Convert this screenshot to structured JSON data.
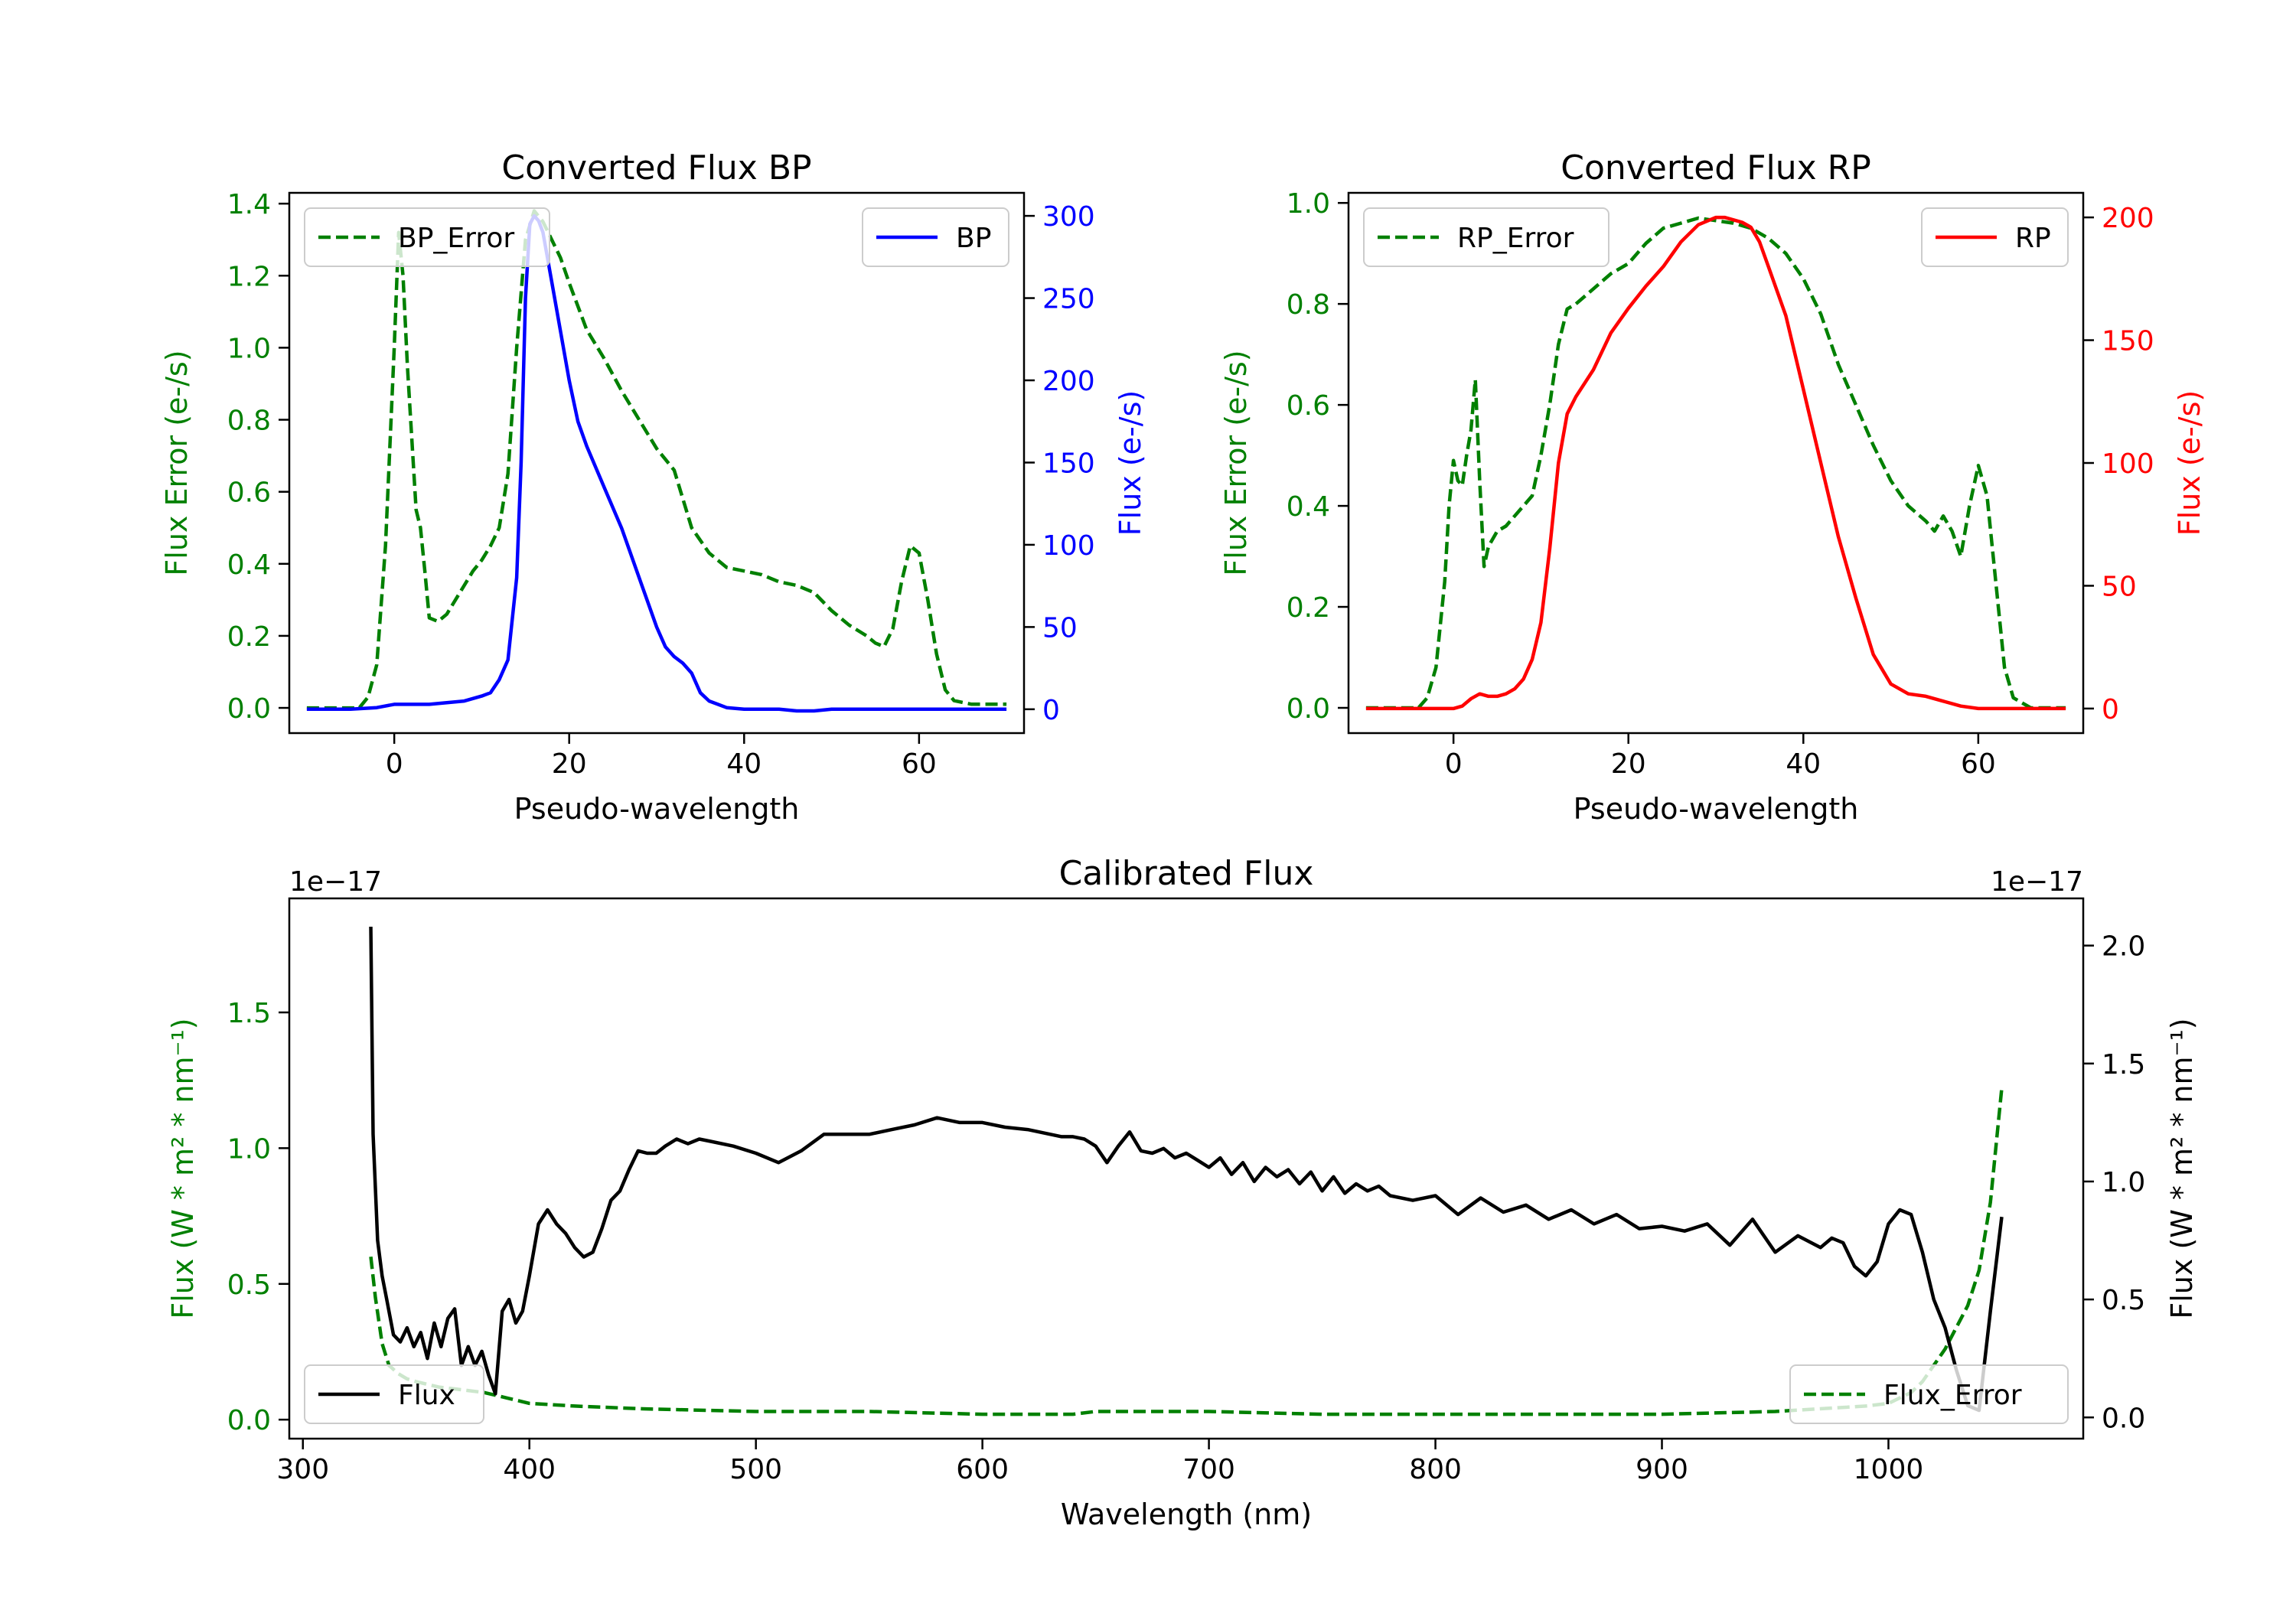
{
  "chart_data": [
    {
      "id": "bp",
      "type": "line",
      "title": "Converted Flux BP",
      "xlabel": "Pseudo-wavelength",
      "ylabel_left": "Flux Error (e-/s)",
      "ylabel_right": "Flux (e-/s)",
      "xlim": [
        -12,
        72
      ],
      "ylim_left": [
        -0.07,
        1.43
      ],
      "ylim_right": [
        -14.5,
        314
      ],
      "xticks": [
        0,
        20,
        40,
        60
      ],
      "yticks_left": [
        "0.0",
        "0.2",
        "0.4",
        "0.6",
        "0.8",
        "1.0",
        "1.2",
        "1.4"
      ],
      "yticks_right": [
        "0",
        "50",
        "100",
        "150",
        "200",
        "250",
        "300"
      ],
      "left_color": "#008000",
      "right_color": "#0000ff",
      "series": [
        {
          "name": "BP_Error",
          "axis": "left",
          "style": "dashed",
          "color": "#008000",
          "x": [
            -10,
            -4,
            -3,
            -2,
            -1,
            0,
            0.5,
            1,
            1.5,
            2,
            2.5,
            3,
            3.5,
            4,
            5,
            6,
            7,
            8,
            9,
            10,
            11,
            12,
            13,
            14,
            15,
            16,
            17,
            18,
            19,
            20,
            22,
            24,
            26,
            28,
            30,
            32,
            34,
            36,
            38,
            40,
            42,
            44,
            46,
            48,
            50,
            52,
            54,
            55,
            56,
            57,
            58,
            59,
            60,
            61,
            62,
            63,
            64,
            66,
            70
          ],
          "y": [
            0.0,
            0.0,
            0.03,
            0.12,
            0.45,
            1.0,
            1.32,
            1.2,
            0.95,
            0.75,
            0.55,
            0.5,
            0.38,
            0.25,
            0.24,
            0.26,
            0.3,
            0.34,
            0.38,
            0.41,
            0.45,
            0.5,
            0.65,
            1.0,
            1.3,
            1.38,
            1.35,
            1.3,
            1.25,
            1.18,
            1.05,
            0.97,
            0.88,
            0.8,
            0.72,
            0.66,
            0.5,
            0.43,
            0.39,
            0.38,
            0.37,
            0.35,
            0.34,
            0.32,
            0.27,
            0.23,
            0.2,
            0.18,
            0.17,
            0.22,
            0.35,
            0.45,
            0.43,
            0.3,
            0.15,
            0.05,
            0.02,
            0.01,
            0.01
          ]
        },
        {
          "name": "BP",
          "axis": "right",
          "style": "solid",
          "color": "#0000ff",
          "x": [
            -10,
            -5,
            -2,
            0,
            2,
            4,
            6,
            8,
            10,
            11,
            12,
            13,
            14,
            14.5,
            15,
            15.5,
            16,
            16.5,
            17,
            18,
            19,
            20,
            21,
            22,
            24,
            26,
            28,
            30,
            31,
            32,
            33,
            34,
            35,
            36,
            37,
            38,
            40,
            42,
            44,
            46,
            48,
            50,
            55,
            60,
            65,
            70
          ],
          "y": [
            0,
            0,
            1,
            3,
            3,
            3,
            4,
            5,
            8,
            10,
            18,
            30,
            80,
            150,
            250,
            295,
            300,
            297,
            290,
            260,
            230,
            200,
            175,
            160,
            135,
            110,
            80,
            50,
            38,
            32,
            28,
            22,
            10,
            5,
            3,
            1,
            0,
            0,
            0,
            -1,
            -1,
            0,
            0,
            0,
            0,
            0
          ]
        }
      ],
      "legend": [
        {
          "label": "BP_Error",
          "position": "upper-left"
        },
        {
          "label": "BP",
          "position": "upper-right"
        }
      ]
    },
    {
      "id": "rp",
      "type": "line",
      "title": "Converted Flux RP",
      "xlabel": "Pseudo-wavelength",
      "ylabel_left": "Flux Error (e-/s)",
      "ylabel_right": "Flux (e-/s)",
      "xlim": [
        -12,
        72
      ],
      "ylim_left": [
        -0.05,
        1.02
      ],
      "ylim_right": [
        -10,
        210
      ],
      "xticks": [
        0,
        20,
        40,
        60
      ],
      "yticks_left": [
        "0.0",
        "0.2",
        "0.4",
        "0.6",
        "0.8",
        "1.0"
      ],
      "yticks_right": [
        "0",
        "50",
        "100",
        "150",
        "200"
      ],
      "left_color": "#008000",
      "right_color": "#ff0000",
      "series": [
        {
          "name": "RP_Error",
          "axis": "left",
          "style": "dashed",
          "color": "#008000",
          "x": [
            -10,
            -4,
            -3,
            -2,
            -1,
            -0.5,
            0,
            0.5,
            1,
            1.5,
            2,
            2.5,
            3,
            3.5,
            4,
            5,
            6,
            7,
            8,
            9,
            10,
            11,
            12,
            13,
            14,
            16,
            18,
            20,
            22,
            24,
            26,
            28,
            30,
            32,
            34,
            36,
            38,
            40,
            42,
            44,
            46,
            48,
            50,
            52,
            54,
            55,
            56,
            57,
            58,
            59,
            60,
            61,
            62,
            63,
            64,
            66,
            70
          ],
          "y": [
            0.0,
            0.0,
            0.02,
            0.08,
            0.25,
            0.4,
            0.49,
            0.45,
            0.44,
            0.5,
            0.55,
            0.65,
            0.45,
            0.28,
            0.32,
            0.35,
            0.36,
            0.38,
            0.4,
            0.42,
            0.5,
            0.6,
            0.72,
            0.79,
            0.8,
            0.83,
            0.86,
            0.88,
            0.92,
            0.95,
            0.96,
            0.97,
            0.965,
            0.96,
            0.95,
            0.93,
            0.9,
            0.85,
            0.78,
            0.68,
            0.6,
            0.52,
            0.45,
            0.4,
            0.37,
            0.35,
            0.38,
            0.35,
            0.3,
            0.4,
            0.48,
            0.42,
            0.25,
            0.08,
            0.02,
            0.0,
            0.0
          ]
        },
        {
          "name": "RP",
          "axis": "right",
          "style": "solid",
          "color": "#ff0000",
          "x": [
            -10,
            -5,
            0,
            1,
            2,
            3,
            4,
            5,
            6,
            7,
            8,
            9,
            10,
            11,
            12,
            13,
            14,
            16,
            18,
            20,
            22,
            24,
            26,
            28,
            30,
            31,
            32,
            33,
            34,
            35,
            36,
            38,
            40,
            42,
            44,
            46,
            48,
            50,
            52,
            54,
            56,
            58,
            60,
            65,
            70
          ],
          "y": [
            0,
            0,
            0,
            1,
            4,
            6,
            5,
            5,
            6,
            8,
            12,
            20,
            35,
            65,
            100,
            120,
            127,
            138,
            153,
            163,
            172,
            180,
            190,
            197,
            200,
            200,
            199,
            198,
            196,
            190,
            180,
            160,
            130,
            100,
            70,
            45,
            22,
            10,
            6,
            5,
            3,
            1,
            0,
            0,
            0
          ]
        }
      ],
      "legend": [
        {
          "label": "RP_Error",
          "position": "upper-left"
        },
        {
          "label": "RP",
          "position": "upper-right"
        }
      ]
    },
    {
      "id": "cal",
      "type": "line",
      "title": "Calibrated Flux",
      "xlabel": "Wavelength (nm)",
      "ylabel_left": "Flux (W * m² * nm⁻¹)",
      "ylabel_right": "Flux (W * m² * nm⁻¹)",
      "offset_left": "1e−17",
      "offset_right": "1e−17",
      "xlim": [
        294,
        1086
      ],
      "ylim_left": [
        -0.07,
        1.92
      ],
      "ylim_right": [
        -0.09,
        2.2
      ],
      "xticks": [
        300,
        400,
        500,
        600,
        700,
        800,
        900,
        1000
      ],
      "yticks_left": [
        "0.0",
        "0.5",
        "1.0",
        "1.5"
      ],
      "yticks_right": [
        "0.0",
        "0.5",
        "1.0",
        "1.5",
        "2.0"
      ],
      "left_color": "#008000",
      "right_color": "#000000",
      "series": [
        {
          "name": "Flux_Error",
          "axis": "left",
          "style": "dashed",
          "color": "#008000",
          "x": [
            330,
            332,
            335,
            338,
            342,
            346,
            350,
            360,
            370,
            380,
            390,
            400,
            420,
            450,
            500,
            550,
            600,
            630,
            640,
            650,
            700,
            750,
            800,
            850,
            900,
            950,
            990,
            1000,
            1010,
            1015,
            1020,
            1025,
            1030,
            1035,
            1040,
            1045,
            1050
          ],
          "y": [
            0.6,
            0.45,
            0.28,
            0.2,
            0.17,
            0.15,
            0.14,
            0.12,
            0.11,
            0.1,
            0.08,
            0.06,
            0.05,
            0.04,
            0.03,
            0.03,
            0.02,
            0.02,
            0.02,
            0.03,
            0.03,
            0.02,
            0.02,
            0.02,
            0.02,
            0.03,
            0.05,
            0.06,
            0.1,
            0.14,
            0.2,
            0.26,
            0.34,
            0.42,
            0.55,
            0.8,
            1.22
          ]
        },
        {
          "name": "Flux",
          "axis": "right",
          "style": "solid",
          "color": "#000000",
          "x": [
            330,
            331,
            333,
            335,
            337,
            340,
            343,
            346,
            349,
            352,
            355,
            358,
            361,
            364,
            367,
            370,
            373,
            376,
            379,
            382,
            385,
            388,
            391,
            394,
            397,
            400,
            404,
            408,
            412,
            416,
            420,
            424,
            428,
            432,
            436,
            440,
            444,
            448,
            452,
            456,
            460,
            465,
            470,
            475,
            480,
            490,
            500,
            510,
            520,
            530,
            540,
            550,
            560,
            570,
            580,
            590,
            600,
            610,
            620,
            630,
            635,
            640,
            645,
            650,
            655,
            660,
            665,
            670,
            675,
            680,
            685,
            690,
            695,
            700,
            705,
            710,
            715,
            720,
            725,
            730,
            735,
            740,
            745,
            750,
            755,
            760,
            765,
            770,
            775,
            780,
            790,
            800,
            810,
            820,
            830,
            840,
            850,
            860,
            870,
            880,
            890,
            900,
            910,
            920,
            930,
            940,
            950,
            960,
            970,
            975,
            980,
            985,
            990,
            995,
            1000,
            1005,
            1010,
            1015,
            1020,
            1025,
            1030,
            1035,
            1040,
            1045,
            1050
          ],
          "y": [
            2.08,
            1.2,
            0.75,
            0.6,
            0.5,
            0.35,
            0.32,
            0.38,
            0.3,
            0.36,
            0.25,
            0.4,
            0.3,
            0.42,
            0.46,
            0.22,
            0.3,
            0.22,
            0.28,
            0.18,
            0.1,
            0.45,
            0.5,
            0.4,
            0.45,
            0.6,
            0.82,
            0.88,
            0.82,
            0.78,
            0.72,
            0.68,
            0.7,
            0.8,
            0.92,
            0.96,
            1.05,
            1.13,
            1.12,
            1.12,
            1.15,
            1.18,
            1.16,
            1.18,
            1.17,
            1.15,
            1.12,
            1.08,
            1.13,
            1.2,
            1.2,
            1.2,
            1.22,
            1.24,
            1.27,
            1.25,
            1.25,
            1.23,
            1.22,
            1.2,
            1.19,
            1.19,
            1.18,
            1.15,
            1.08,
            1.15,
            1.21,
            1.13,
            1.12,
            1.14,
            1.1,
            1.12,
            1.09,
            1.06,
            1.1,
            1.03,
            1.08,
            1.0,
            1.06,
            1.02,
            1.05,
            0.99,
            1.04,
            0.96,
            1.02,
            0.95,
            0.99,
            0.96,
            0.98,
            0.94,
            0.92,
            0.94,
            0.86,
            0.93,
            0.87,
            0.9,
            0.84,
            0.88,
            0.82,
            0.86,
            0.8,
            0.81,
            0.79,
            0.82,
            0.73,
            0.84,
            0.7,
            0.77,
            0.72,
            0.76,
            0.74,
            0.64,
            0.6,
            0.66,
            0.82,
            0.88,
            0.86,
            0.7,
            0.5,
            0.38,
            0.2,
            0.05,
            0.03,
            0.45,
            0.85
          ]
        }
      ],
      "legend": [
        {
          "label": "Flux",
          "position": "lower-left"
        },
        {
          "label": "Flux_Error",
          "position": "lower-right"
        }
      ]
    }
  ]
}
